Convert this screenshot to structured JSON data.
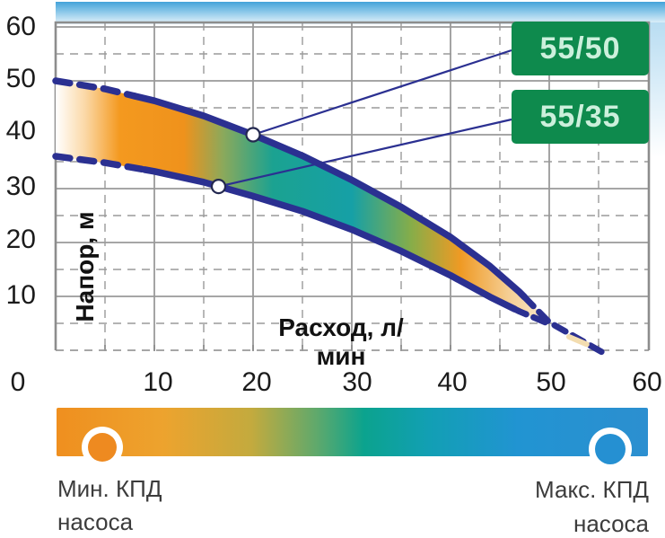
{
  "axis": {
    "x_title": "Расход, л/мин",
    "y_title": "Напор, м",
    "x_ticks": [
      "0",
      "10",
      "20",
      "30",
      "40",
      "50",
      "60"
    ],
    "y_ticks": [
      "60",
      "50",
      "40",
      "30",
      "20",
      "10"
    ]
  },
  "callouts": [
    {
      "label": "55/50"
    },
    {
      "label": "55/35"
    }
  ],
  "legend": {
    "min_label_line1": "Мин. КПД",
    "min_label_line2": "насоса",
    "max_label_line1": "Макс. КПД",
    "max_label_line2": "насоса",
    "min_marker_color": "#ee8a20",
    "max_marker_color": "#2590d2",
    "gradient": [
      "#ef8f1f",
      "#c3aa3e",
      "#0ba38e",
      "#2194d2",
      "#2c8fd0"
    ]
  },
  "colors": {
    "callout_box": "#0e8a4d",
    "callout_text": "#ccf0dc",
    "curve": "#2b3091",
    "grid": "#9a9a9a",
    "frame": "#8d8d8d",
    "sky_top": "#43a3d9"
  },
  "chart_data": {
    "type": "area",
    "description": "Pump performance band: head (m) vs flow (l/min) between pump models 55/50 and 55/35, band colored by pump efficiency from min (orange) to max (blue-teal)",
    "xlabel": "Расход, л/мин",
    "ylabel": "Напор, м",
    "xlim": [
      0,
      60
    ],
    "ylim": [
      0,
      60
    ],
    "x_major_ticks": [
      0,
      10,
      20,
      30,
      40,
      50,
      60
    ],
    "y_major_ticks": [
      10,
      20,
      30,
      40,
      50,
      60
    ],
    "minor_grid_step": 5,
    "grid": "major solid, minor dashed",
    "curve_color": "#2b3091",
    "series": [
      {
        "name": "55/50",
        "role": "upper-curve",
        "points": [
          [
            0,
            50
          ],
          [
            5,
            48.5
          ],
          [
            10,
            46.3
          ],
          [
            15,
            43.5
          ],
          [
            20,
            40
          ],
          [
            25,
            36.1
          ],
          [
            30,
            31.6
          ],
          [
            35,
            26.6
          ],
          [
            40,
            21
          ],
          [
            44,
            15.6
          ],
          [
            47,
            10.8
          ],
          [
            50,
            5.2
          ]
        ],
        "marker_point": [
          20,
          40
        ],
        "dashed_until_q": 8,
        "dashed_from_q": 47.5
      },
      {
        "name": "55/35",
        "role": "lower-curve",
        "points": [
          [
            0,
            36
          ],
          [
            5,
            34.8
          ],
          [
            10,
            33.2
          ],
          [
            15,
            31.2
          ],
          [
            20,
            28.6
          ],
          [
            25,
            25.8
          ],
          [
            30,
            22.4
          ],
          [
            35,
            18.4
          ],
          [
            40,
            13.9
          ],
          [
            44,
            9.9
          ],
          [
            47,
            7.2
          ],
          [
            50,
            4.9
          ]
        ],
        "marker_point": [
          16.5,
          30.4
        ],
        "dashed_until_q": 9,
        "dashed_from_q": 46.5
      }
    ],
    "tail_extension": [
      [
        50,
        5
      ],
      [
        55.6,
        -0.6
      ]
    ],
    "band_gradient": [
      [
        0,
        "#ffffff"
      ],
      [
        0.06,
        "#fbd8a6"
      ],
      [
        0.13,
        "#f4991f"
      ],
      [
        0.26,
        "#ef921c"
      ],
      [
        0.34,
        "#8aa95c"
      ],
      [
        0.44,
        "#1ba291"
      ],
      [
        0.6,
        "#16a0a6"
      ],
      [
        0.72,
        "#86ad49"
      ],
      [
        0.82,
        "#ef9a24"
      ],
      [
        0.92,
        "#f5cf96"
      ],
      [
        1,
        "#f9ead0"
      ]
    ]
  }
}
